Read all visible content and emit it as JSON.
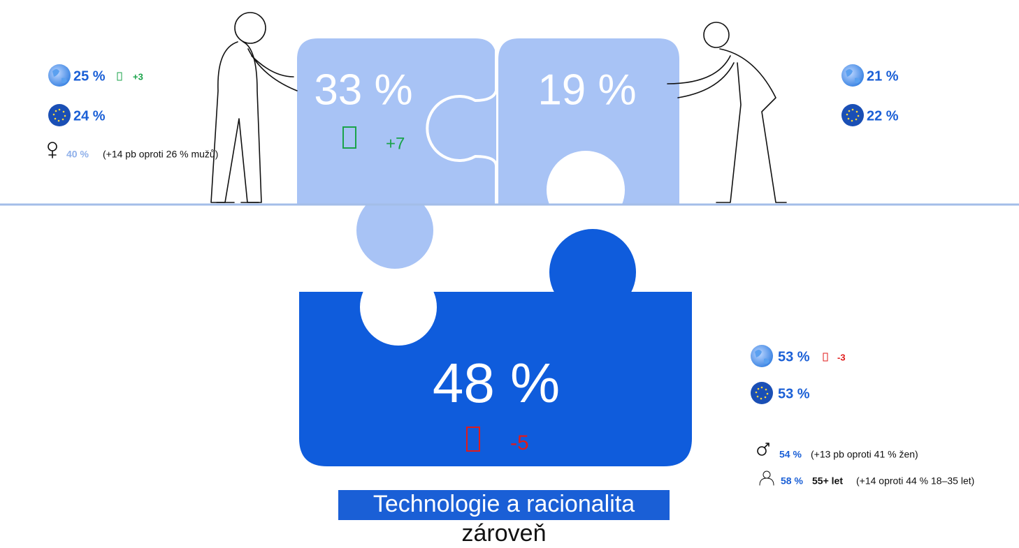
{
  "pieces": [
    {
      "value": "33 %",
      "change": "+7"
    },
    {
      "value": "19 %"
    },
    {
      "value": "48 %",
      "change": "-5"
    }
  ],
  "stats_left": {
    "world": "25 %",
    "world_change": "+3",
    "eu": "24 %",
    "gender_value": "40 %",
    "gender_note": "(+14 pb oproti 26 % mužů)"
  },
  "stats_right_top": {
    "world": "21 %",
    "eu": "22 %"
  },
  "stats_right_bottom": {
    "world": "53 %",
    "world_change": "-3",
    "eu": "53 %",
    "gender_value": "54 %",
    "gender_note": "(+13 pb oproti 41 % žen)",
    "age_value": "58 %",
    "age_group": "55+ let",
    "age_note": "(+14 oproti 44 % 18–35 let)"
  },
  "caption": {
    "title": "Technologie a racionalita",
    "subtitle": "zároveň"
  }
}
